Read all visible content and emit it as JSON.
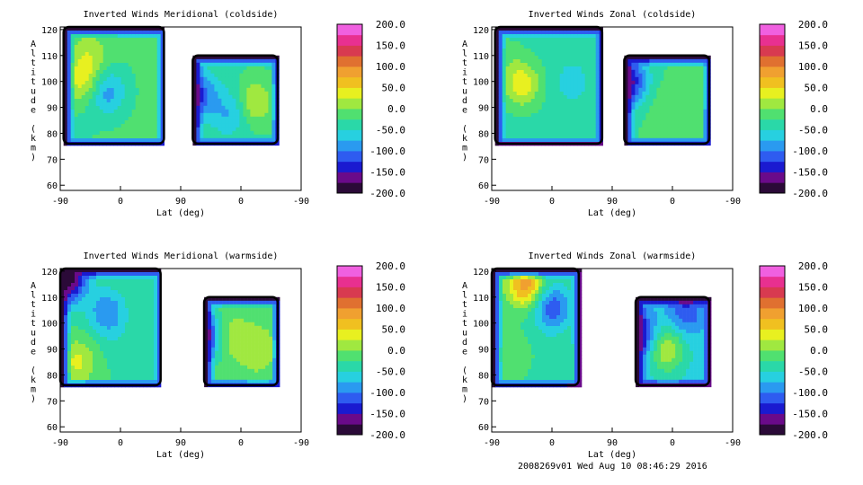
{
  "footer": "2008269v01 Wed Aug 10 08:46:29 2016",
  "colors": {
    "scale": [
      "#2b0a38",
      "#6a0a8a",
      "#1a1ad0",
      "#2e5cf0",
      "#2a9af0",
      "#27d0e0",
      "#2ad8a8",
      "#50e070",
      "#a0e840",
      "#e8f020",
      "#f0c020",
      "#f0a030",
      "#e07030",
      "#d83a50",
      "#e83090",
      "#f060e0"
    ],
    "mask": "#000000"
  },
  "chart_data": [
    {
      "type": "heatmap",
      "title": "Inverted Winds Meridional (coldside)",
      "xlabel": "Lat (deg)",
      "ylabel": "Altitude (km)",
      "x_tick_labels": [
        "-90",
        "0",
        "90",
        "0",
        "-90"
      ],
      "y_ticks": [
        60,
        70,
        80,
        90,
        100,
        110,
        120
      ],
      "ylim": [
        58,
        121
      ],
      "colorbar": {
        "ticks": [
          "200.0",
          "150.0",
          "100.0",
          "50.0",
          "0.0",
          "-50.0",
          "-100.0",
          "-150.0",
          "-200.0"
        ],
        "range": [
          -200,
          200
        ]
      },
      "series": [
        {
          "x": [
            -85,
            65
          ],
          "y": [
            76,
            121
          ],
          "mean": -20,
          "extrema": [
            [
              -55,
              100,
              35
            ],
            [
              -20,
              96,
              -90
            ],
            [
              -45,
              110,
              15
            ],
            [
              -60,
              85,
              -30
            ]
          ]
        },
        {
          "x": [
            108,
            235
          ],
          "y": [
            76,
            110
          ],
          "mean": -30,
          "extrema": [
            [
              200,
              92,
              30
            ],
            [
              115,
              95,
              -120
            ],
            [
              165,
              88,
              -80
            ]
          ]
        }
      ]
    },
    {
      "type": "heatmap",
      "title": "Inverted Winds Zonal (coldside)",
      "xlabel": "Lat (deg)",
      "ylabel": "Altitude (km)",
      "x_tick_labels": [
        "-90",
        "0",
        "90",
        "0",
        "-90"
      ],
      "y_ticks": [
        60,
        70,
        80,
        90,
        100,
        110,
        120
      ],
      "ylim": [
        58,
        121
      ],
      "colorbar": {
        "ticks": [
          "200.0",
          "150.0",
          "100.0",
          "50.0",
          "0.0",
          "-50.0",
          "-100.0",
          "-150.0",
          "-200.0"
        ],
        "range": [
          -200,
          200
        ]
      },
      "series": [
        {
          "x": [
            -85,
            75
          ],
          "y": [
            76,
            121
          ],
          "mean": -35,
          "extrema": [
            [
              -45,
              99,
              40
            ],
            [
              30,
              100,
              -60
            ],
            [
              -70,
              110,
              -20
            ]
          ]
        },
        {
          "x": [
            108,
            235
          ],
          "y": [
            76,
            110
          ],
          "mean": -25,
          "extrema": [
            [
              115,
              100,
              -150
            ],
            [
              170,
              90,
              -5
            ],
            [
              215,
              98,
              -10
            ]
          ]
        }
      ]
    },
    {
      "type": "heatmap",
      "title": "Inverted Winds Meridional (warmside)",
      "xlabel": "Lat (deg)",
      "ylabel": "Altitude (km)",
      "x_tick_labels": [
        "-90",
        "0",
        "90",
        "0",
        "-90"
      ],
      "y_ticks": [
        60,
        70,
        80,
        90,
        100,
        110,
        120
      ],
      "ylim": [
        58,
        121
      ],
      "colorbar": {
        "ticks": [
          "200.0",
          "150.0",
          "100.0",
          "50.0",
          "0.0",
          "-50.0",
          "-100.0",
          "-150.0",
          "-200.0"
        ],
        "range": [
          -200,
          200
        ]
      },
      "series": [
        {
          "x": [
            -90,
            60
          ],
          "y": [
            76,
            121
          ],
          "mean": -25,
          "extrema": [
            [
              -65,
              85,
              30
            ],
            [
              -20,
              104,
              -100
            ],
            [
              10,
              90,
              -40
            ],
            [
              -80,
              117,
              -200
            ]
          ]
        },
        {
          "x": [
            125,
            235
          ],
          "y": [
            76,
            110
          ],
          "mean": -15,
          "extrema": [
            [
              160,
              95,
              25
            ],
            [
              205,
              90,
              20
            ],
            [
              128,
              95,
              -130
            ]
          ]
        }
      ]
    },
    {
      "type": "heatmap",
      "title": "Inverted Winds Zonal (warmside)",
      "xlabel": "Lat (deg)",
      "ylabel": "Altitude (km)",
      "x_tick_labels": [
        "-90",
        "0",
        "90",
        "0",
        "-90"
      ],
      "y_ticks": [
        60,
        70,
        80,
        90,
        100,
        110,
        120
      ],
      "ylim": [
        58,
        121
      ],
      "colorbar": {
        "ticks": [
          "200.0",
          "150.0",
          "100.0",
          "50.0",
          "0.0",
          "-50.0",
          "-100.0",
          "-150.0",
          "-200.0"
        ],
        "range": [
          -200,
          200
        ]
      },
      "series": [
        {
          "x": [
            -90,
            40
          ],
          "y": [
            76,
            121
          ],
          "mean": -30,
          "extrema": [
            [
              -40,
              115,
              90
            ],
            [
              0,
              106,
              -120
            ],
            [
              -60,
              88,
              -10
            ]
          ]
        },
        {
          "x": [
            125,
            235
          ],
          "y": [
            76,
            110
          ],
          "mean": -60,
          "extrema": [
            [
              170,
              90,
              30
            ],
            [
              130,
              95,
              -160
            ],
            [
              200,
              104,
              -120
            ]
          ]
        }
      ]
    }
  ]
}
